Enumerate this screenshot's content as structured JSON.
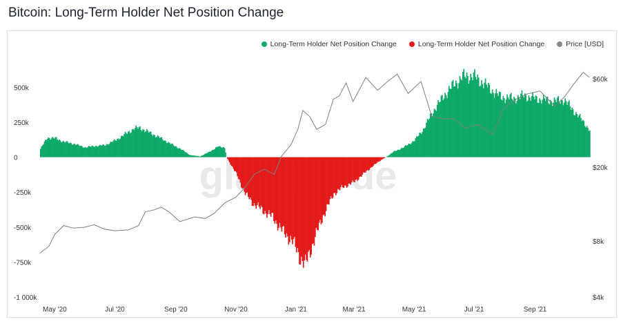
{
  "title": "Bitcoin: Long-Term Holder Net Position Change",
  "legend": [
    {
      "label": "Long-Term Holder Net Position Change",
      "color": "#11a86a"
    },
    {
      "label": "Long-Term Holder Net Position Change",
      "color": "#e11d1d"
    },
    {
      "label": "Price [USD]",
      "color": "#8a8a8a"
    }
  ],
  "watermark": "glassnode",
  "chart_data": {
    "type": "bar",
    "y_left": {
      "ticks": [
        {
          "v": 500000,
          "label": "500k"
        },
        {
          "v": 250000,
          "label": "250k"
        },
        {
          "v": 0,
          "label": "0"
        },
        {
          "v": -250000,
          "label": "-250k"
        },
        {
          "v": -500000,
          "label": "-500k"
        },
        {
          "v": -750000,
          "label": "-750k"
        },
        {
          "v": -1000000,
          "label": "-1 000k"
        }
      ],
      "ylim": [
        -1000000,
        650000
      ]
    },
    "y_right": {
      "scale": "log",
      "ticks": [
        {
          "v": 60000,
          "label": "$60k"
        },
        {
          "v": 20000,
          "label": "$20k"
        },
        {
          "v": 8000,
          "label": "$8k"
        },
        {
          "v": 4000,
          "label": "$4k"
        }
      ],
      "ylim": [
        4000,
        70000
      ]
    },
    "x_range": [
      "2020-04-16",
      "2021-10-26"
    ],
    "x_ticks": [
      {
        "date": "2020-05-01",
        "label": "May '20"
      },
      {
        "date": "2020-07-01",
        "label": "Jul '20"
      },
      {
        "date": "2020-09-01",
        "label": "Sep '20"
      },
      {
        "date": "2020-11-01",
        "label": "Nov '20"
      },
      {
        "date": "2021-01-01",
        "label": "Jan '21"
      },
      {
        "date": "2021-03-01",
        "label": "Mar '21"
      },
      {
        "date": "2021-05-01",
        "label": "May '21"
      },
      {
        "date": "2021-07-01",
        "label": "Jul '21"
      },
      {
        "date": "2021-09-01",
        "label": "Sep '21"
      }
    ],
    "series": [
      {
        "values": [
          [
            "2020-04-16",
            60000
          ],
          [
            "2020-04-23",
            140000
          ],
          [
            "2020-05-01",
            135000
          ],
          [
            "2020-05-10",
            110000
          ],
          [
            "2020-05-20",
            95000
          ],
          [
            "2020-05-31",
            70000
          ],
          [
            "2020-06-10",
            80000
          ],
          [
            "2020-06-20",
            85000
          ],
          [
            "2020-07-01",
            120000
          ],
          [
            "2020-07-10",
            160000
          ],
          [
            "2020-07-20",
            205000
          ],
          [
            "2020-07-26",
            210000
          ],
          [
            "2020-08-05",
            175000
          ],
          [
            "2020-08-15",
            140000
          ],
          [
            "2020-08-25",
            100000
          ],
          [
            "2020-09-05",
            60000
          ],
          [
            "2020-09-15",
            15000
          ],
          [
            "2020-09-25",
            5000
          ],
          [
            "2020-10-05",
            40000
          ],
          [
            "2020-10-13",
            75000
          ],
          [
            "2020-10-20",
            70000
          ],
          [
            "2020-10-22",
            0
          ],
          [
            "2020-11-01",
            -120000
          ],
          [
            "2020-11-10",
            -260000
          ],
          [
            "2020-11-18",
            -330000
          ],
          [
            "2020-11-28",
            -380000
          ],
          [
            "2020-12-08",
            -430000
          ],
          [
            "2020-12-18",
            -530000
          ],
          [
            "2020-12-28",
            -600000
          ],
          [
            "2021-01-05",
            -720000
          ],
          [
            "2021-01-10",
            -770000
          ],
          [
            "2021-01-18",
            -610000
          ],
          [
            "2021-01-28",
            -420000
          ],
          [
            "2021-02-08",
            -260000
          ],
          [
            "2021-02-18",
            -210000
          ],
          [
            "2021-02-28",
            -180000
          ],
          [
            "2021-03-10",
            -120000
          ],
          [
            "2021-03-20",
            -60000
          ],
          [
            "2021-03-30",
            -10000
          ],
          [
            "2021-04-02",
            0
          ],
          [
            "2021-04-10",
            40000
          ],
          [
            "2021-04-20",
            70000
          ],
          [
            "2021-05-01",
            120000
          ],
          [
            "2021-05-10",
            200000
          ],
          [
            "2021-05-20",
            330000
          ],
          [
            "2021-06-01",
            450000
          ],
          [
            "2021-06-10",
            520000
          ],
          [
            "2021-06-20",
            580000
          ],
          [
            "2021-06-30",
            580000
          ],
          [
            "2021-07-10",
            530000
          ],
          [
            "2021-07-20",
            470000
          ],
          [
            "2021-07-28",
            430000
          ],
          [
            "2021-08-10",
            420000
          ],
          [
            "2021-08-20",
            440000
          ],
          [
            "2021-09-01",
            420000
          ],
          [
            "2021-09-10",
            410000
          ],
          [
            "2021-09-20",
            400000
          ],
          [
            "2021-09-30",
            410000
          ],
          [
            "2021-10-10",
            330000
          ],
          [
            "2021-10-20",
            250000
          ],
          [
            "2021-10-26",
            190000
          ]
        ]
      },
      {
        "name": "Price [USD]",
        "values": [
          [
            "2020-04-16",
            6900
          ],
          [
            "2020-04-25",
            7500
          ],
          [
            "2020-05-01",
            8700
          ],
          [
            "2020-05-10",
            9700
          ],
          [
            "2020-05-20",
            9400
          ],
          [
            "2020-05-31",
            9500
          ],
          [
            "2020-06-10",
            9800
          ],
          [
            "2020-06-20",
            9300
          ],
          [
            "2020-07-01",
            9100
          ],
          [
            "2020-07-15",
            9200
          ],
          [
            "2020-07-25",
            9700
          ],
          [
            "2020-08-01",
            11500
          ],
          [
            "2020-08-10",
            11800
          ],
          [
            "2020-08-17",
            12200
          ],
          [
            "2020-08-25",
            11500
          ],
          [
            "2020-09-05",
            10200
          ],
          [
            "2020-09-20",
            10800
          ],
          [
            "2020-10-01",
            10600
          ],
          [
            "2020-10-10",
            11300
          ],
          [
            "2020-10-21",
            12900
          ],
          [
            "2020-11-01",
            13800
          ],
          [
            "2020-11-10",
            15500
          ],
          [
            "2020-11-20",
            18400
          ],
          [
            "2020-11-30",
            19500
          ],
          [
            "2020-12-10",
            18300
          ],
          [
            "2020-12-17",
            22800
          ],
          [
            "2020-12-27",
            26500
          ],
          [
            "2021-01-03",
            32000
          ],
          [
            "2021-01-08",
            40500
          ],
          [
            "2021-01-15",
            37500
          ],
          [
            "2021-01-22",
            32000
          ],
          [
            "2021-01-31",
            34000
          ],
          [
            "2021-02-08",
            46500
          ],
          [
            "2021-02-14",
            48500
          ],
          [
            "2021-02-21",
            57000
          ],
          [
            "2021-02-28",
            45200
          ],
          [
            "2021-03-13",
            61000
          ],
          [
            "2021-03-25",
            52000
          ],
          [
            "2021-04-05",
            58500
          ],
          [
            "2021-04-14",
            63500
          ],
          [
            "2021-04-25",
            50000
          ],
          [
            "2021-05-08",
            58000
          ],
          [
            "2021-05-19",
            37500
          ],
          [
            "2021-05-31",
            36500
          ],
          [
            "2021-06-10",
            36700
          ],
          [
            "2021-06-22",
            32500
          ],
          [
            "2021-07-05",
            34000
          ],
          [
            "2021-07-20",
            30000
          ],
          [
            "2021-07-31",
            41500
          ],
          [
            "2021-08-14",
            47000
          ],
          [
            "2021-08-23",
            49500
          ],
          [
            "2021-09-06",
            51500
          ],
          [
            "2021-09-21",
            42500
          ],
          [
            "2021-10-01",
            48000
          ],
          [
            "2021-10-10",
            56000
          ],
          [
            "2021-10-20",
            65000
          ],
          [
            "2021-10-26",
            61000
          ]
        ]
      }
    ]
  }
}
